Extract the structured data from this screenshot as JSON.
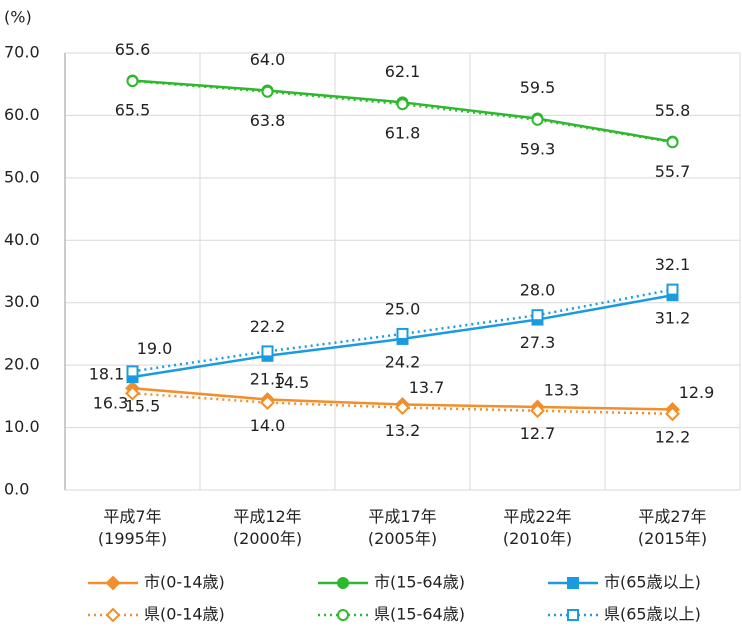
{
  "chart_data": {
    "type": "line",
    "y_label": "(%)",
    "categories": [
      "平成7年\n(1995年)",
      "平成12年\n(2000年)",
      "平成17年\n(2005年)",
      "平成22年\n(2010年)",
      "平成27年\n(2015年)"
    ],
    "series": [
      {
        "name": "市(0-14歳)",
        "color": "#f28e2b",
        "style": "solid",
        "marker": "diamond",
        "filled": true,
        "values": [
          16.3,
          14.5,
          13.7,
          13.3,
          12.9
        ],
        "value_labels": [
          "16.3",
          "14.5",
          "13.7",
          "13.3",
          "12.9"
        ]
      },
      {
        "name": "市(15-64歳)",
        "color": "#2db82d",
        "style": "solid",
        "marker": "circle",
        "filled": true,
        "values": [
          65.6,
          64.0,
          62.1,
          59.5,
          55.8
        ],
        "value_labels": [
          "65.6",
          "64.0",
          "62.1",
          "59.5",
          "55.8"
        ]
      },
      {
        "name": "市(65歳以上)",
        "color": "#1a9be0",
        "style": "solid",
        "marker": "square",
        "filled": true,
        "values": [
          18.1,
          21.5,
          24.2,
          27.3,
          31.2
        ],
        "value_labels": [
          "18.1",
          "21.5",
          "24.2",
          "27.3",
          "31.2"
        ]
      },
      {
        "name": "県(0-14歳)",
        "color": "#f28e2b",
        "style": "dotted",
        "marker": "diamond",
        "filled": false,
        "values": [
          15.5,
          14.0,
          13.2,
          12.7,
          12.2
        ],
        "value_labels": [
          "15.5",
          "14.0",
          "13.2",
          "12.7",
          "12.2"
        ]
      },
      {
        "name": "県(15-64歳)",
        "color": "#2db82d",
        "style": "dotted",
        "marker": "circle",
        "filled": false,
        "values": [
          65.5,
          63.8,
          61.8,
          59.3,
          55.7
        ],
        "value_labels": [
          "65.5",
          "63.8",
          "61.8",
          "59.3",
          "55.7"
        ]
      },
      {
        "name": "県(65歳以上)",
        "color": "#1a9be0",
        "style": "dotted",
        "marker": "square",
        "filled": false,
        "values": [
          19.0,
          22.2,
          25.0,
          28.0,
          32.1
        ],
        "value_labels": [
          "19.0",
          "22.2",
          "25.0",
          "28.0",
          "32.1"
        ]
      }
    ],
    "ylim": [
      0,
      70
    ],
    "yticks": [
      {
        "value": 0,
        "label": "0.0"
      },
      {
        "value": 10,
        "label": "10.0"
      },
      {
        "value": 20,
        "label": "20.0"
      },
      {
        "value": 30,
        "label": "30.0"
      },
      {
        "value": 40,
        "label": "40.0"
      },
      {
        "value": 50,
        "label": "50.0"
      },
      {
        "value": 60,
        "label": "60.0"
      },
      {
        "value": 70,
        "label": "70.0"
      }
    ],
    "grid": true,
    "legend": "bottom"
  }
}
